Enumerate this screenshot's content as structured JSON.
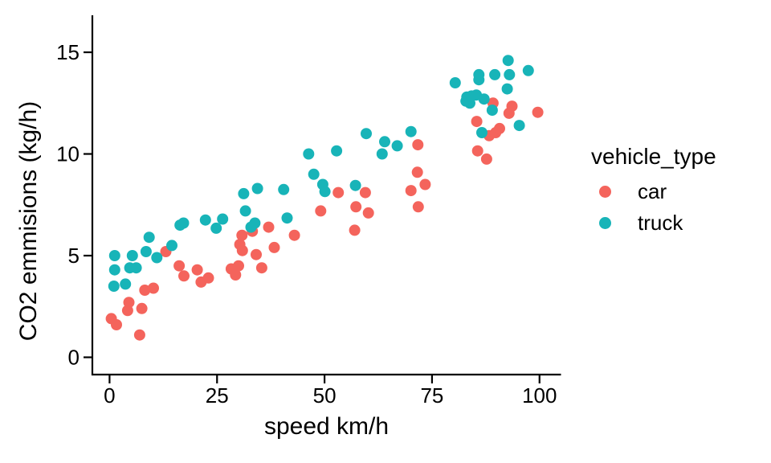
{
  "figure": {
    "background": "#ffffff",
    "axis_color": "#000000",
    "text_color": "#000000"
  },
  "chart_data": {
    "type": "scatter",
    "title": "",
    "xlabel": "speed km/h",
    "ylabel": "CO2 emmisions (kg/h)",
    "x_tick_labels": [
      "0",
      "25",
      "50",
      "75",
      "100"
    ],
    "x_tick_values": [
      0,
      25,
      50,
      75,
      100
    ],
    "y_tick_labels": [
      "0",
      "5",
      "10",
      "15"
    ],
    "y_tick_values": [
      0,
      5,
      10,
      15
    ],
    "xlim": [
      -4.0,
      104.9
    ],
    "ylim": [
      -0.85,
      16.82
    ],
    "grid": false,
    "point_radius": 7,
    "legend": {
      "title": "vehicle_type",
      "position": "right",
      "entries": [
        {
          "label": "car",
          "color": "#F4645C"
        },
        {
          "label": "truck",
          "color": "#18B4B8"
        }
      ]
    },
    "series": [
      {
        "name": "car",
        "color": "#F4645C",
        "points": [
          [
            0.4,
            1.9
          ],
          [
            1.6,
            1.6
          ],
          [
            4.2,
            2.3
          ],
          [
            4.5,
            2.7
          ],
          [
            7.0,
            1.1
          ],
          [
            7.5,
            2.4
          ],
          [
            8.2,
            3.3
          ],
          [
            10.2,
            3.4
          ],
          [
            13.1,
            5.2
          ],
          [
            16.2,
            4.5
          ],
          [
            17.3,
            4.0
          ],
          [
            20.4,
            4.3
          ],
          [
            21.3,
            3.7
          ],
          [
            23.0,
            3.9
          ],
          [
            28.3,
            4.35
          ],
          [
            29.3,
            4.05
          ],
          [
            30.0,
            4.5
          ],
          [
            30.3,
            5.55
          ],
          [
            30.8,
            6.0
          ],
          [
            30.9,
            5.25
          ],
          [
            33.2,
            6.2
          ],
          [
            34.1,
            5.05
          ],
          [
            35.4,
            4.4
          ],
          [
            37.0,
            6.4
          ],
          [
            38.3,
            5.4
          ],
          [
            43.0,
            6.0
          ],
          [
            49.1,
            7.2
          ],
          [
            53.2,
            8.1
          ],
          [
            57.0,
            6.25
          ],
          [
            57.3,
            7.4
          ],
          [
            59.5,
            8.1
          ],
          [
            60.2,
            7.1
          ],
          [
            70.1,
            8.2
          ],
          [
            71.6,
            9.1
          ],
          [
            71.7,
            10.45
          ],
          [
            71.8,
            7.4
          ],
          [
            73.4,
            8.5
          ],
          [
            85.4,
            11.6
          ],
          [
            85.6,
            10.15
          ],
          [
            87.7,
            9.75
          ],
          [
            88.3,
            10.9
          ],
          [
            89.2,
            12.5
          ],
          [
            89.8,
            11.05
          ],
          [
            90.7,
            11.25
          ],
          [
            92.9,
            12.0
          ],
          [
            93.6,
            12.35
          ],
          [
            99.6,
            12.05
          ]
        ]
      },
      {
        "name": "truck",
        "color": "#18B4B8",
        "points": [
          [
            1.0,
            3.5
          ],
          [
            1.2,
            4.3
          ],
          [
            1.2,
            5.0
          ],
          [
            3.7,
            3.6
          ],
          [
            4.7,
            4.4
          ],
          [
            5.3,
            5.0
          ],
          [
            6.2,
            4.4
          ],
          [
            8.5,
            5.2
          ],
          [
            9.2,
            5.9
          ],
          [
            11.0,
            4.9
          ],
          [
            14.5,
            5.5
          ],
          [
            16.4,
            6.5
          ],
          [
            17.2,
            6.6
          ],
          [
            22.3,
            6.75
          ],
          [
            24.8,
            6.35
          ],
          [
            26.3,
            6.8
          ],
          [
            31.2,
            8.05
          ],
          [
            31.6,
            7.2
          ],
          [
            32.9,
            6.4
          ],
          [
            33.8,
            6.6
          ],
          [
            34.4,
            8.3
          ],
          [
            40.5,
            8.25
          ],
          [
            41.3,
            6.85
          ],
          [
            46.3,
            10.0
          ],
          [
            47.5,
            9.0
          ],
          [
            49.6,
            8.5
          ],
          [
            50.1,
            8.15
          ],
          [
            52.8,
            10.15
          ],
          [
            57.2,
            8.45
          ],
          [
            59.7,
            11.0
          ],
          [
            63.4,
            10.0
          ],
          [
            64.0,
            10.6
          ],
          [
            66.9,
            10.4
          ],
          [
            70.1,
            11.1
          ],
          [
            80.4,
            13.5
          ],
          [
            82.9,
            12.6
          ],
          [
            83.1,
            12.8
          ],
          [
            83.8,
            12.5
          ],
          [
            84.2,
            12.85
          ],
          [
            85.3,
            12.9
          ],
          [
            85.9,
            13.9
          ],
          [
            85.9,
            13.65
          ],
          [
            86.6,
            11.05
          ],
          [
            87.1,
            12.7
          ],
          [
            89.0,
            12.15
          ],
          [
            89.6,
            13.9
          ],
          [
            92.5,
            13.2
          ],
          [
            92.7,
            14.6
          ],
          [
            93.0,
            13.9
          ],
          [
            95.3,
            11.4
          ],
          [
            97.4,
            14.1
          ]
        ]
      }
    ]
  }
}
